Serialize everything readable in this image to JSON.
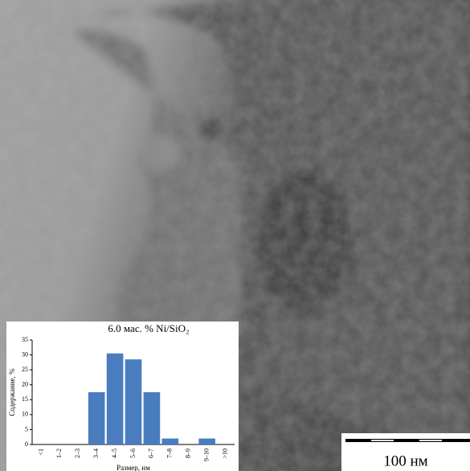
{
  "chart_data": {
    "type": "bar",
    "title": "6.0 мас. % Ni/SiO₂",
    "x_label": "Размер, нм",
    "y_label": "Содержание, %",
    "categories": [
      "<1",
      "1–2",
      "2–3",
      "3–4",
      "4–5",
      "5–6",
      "6–7",
      "7–8",
      "8–9",
      "9–10",
      ">10"
    ],
    "values": [
      0,
      0,
      0,
      17.5,
      30.5,
      28.5,
      17.5,
      2,
      0,
      2,
      0
    ],
    "color": "#4a7dc0",
    "ylim": [
      0,
      35
    ],
    "yticks": [
      0,
      5,
      10,
      15,
      20,
      25,
      30,
      35
    ]
  },
  "scale_bar": {
    "label": "100 нм"
  }
}
